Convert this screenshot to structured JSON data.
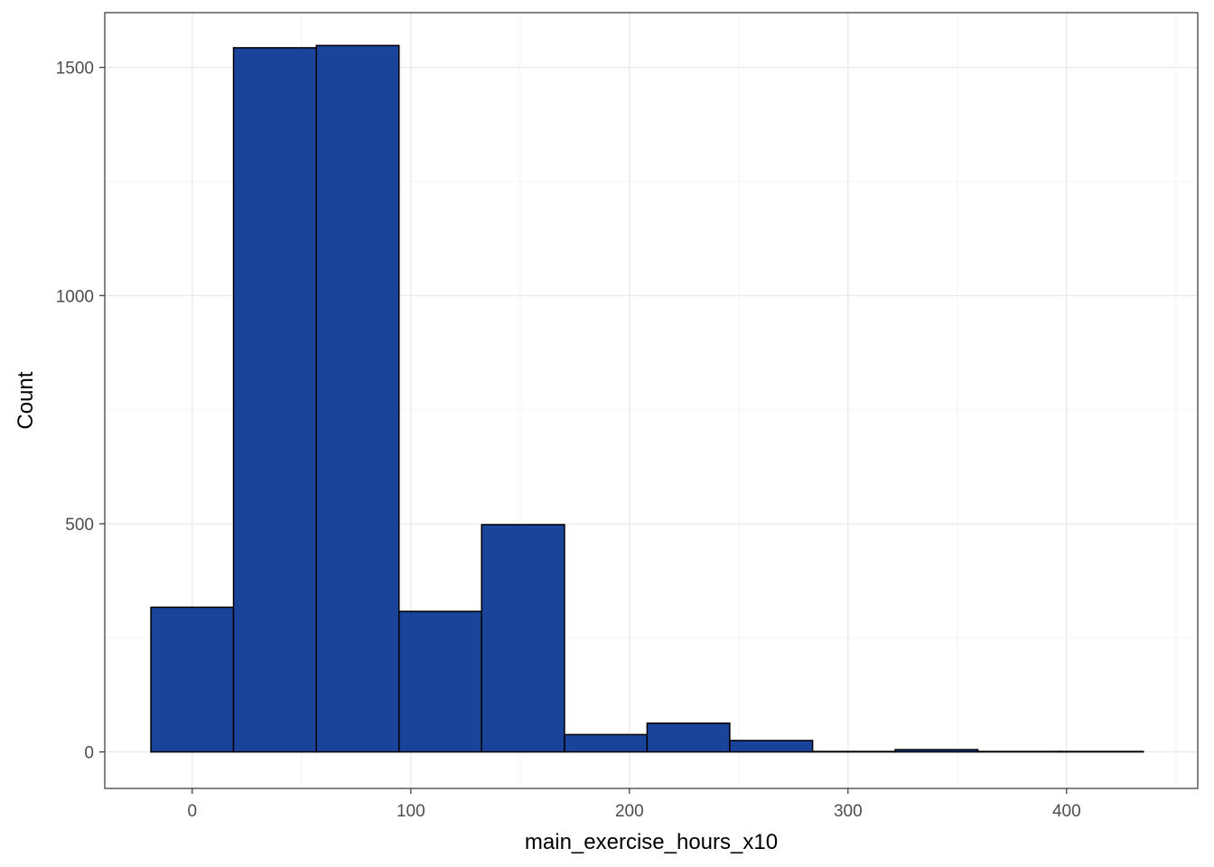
{
  "chart_data": {
    "type": "bar",
    "subtype": "histogram",
    "title": "",
    "xlabel": "main_exercise_hours_x10",
    "ylabel": "Count",
    "xlim": [
      -40,
      460
    ],
    "ylim": [
      -80,
      1620
    ],
    "x_ticks": [
      0,
      100,
      200,
      300,
      400
    ],
    "y_ticks": [
      0,
      500,
      1000,
      1500
    ],
    "grid": true,
    "bins": [
      {
        "x0": -18.9,
        "x1": 18.9,
        "count": 317
      },
      {
        "x0": 18.9,
        "x1": 56.8,
        "count": 1543
      },
      {
        "x0": 56.8,
        "x1": 94.6,
        "count": 1548
      },
      {
        "x0": 94.6,
        "x1": 132.4,
        "count": 308
      },
      {
        "x0": 132.4,
        "x1": 170.3,
        "count": 498
      },
      {
        "x0": 170.3,
        "x1": 208.1,
        "count": 38
      },
      {
        "x0": 208.1,
        "x1": 245.9,
        "count": 63
      },
      {
        "x0": 245.9,
        "x1": 283.8,
        "count": 25
      },
      {
        "x0": 283.8,
        "x1": 321.6,
        "count": 1
      },
      {
        "x0": 321.6,
        "x1": 359.4,
        "count": 5
      },
      {
        "x0": 359.4,
        "x1": 397.3,
        "count": 1
      },
      {
        "x0": 397.3,
        "x1": 435.1,
        "count": 1
      }
    ],
    "colors": {
      "fill": "#1A4499",
      "stroke": "#000000",
      "grid_major": "#EBEBEB",
      "grid_minor": "#F5F5F5",
      "panel_border": "#333333",
      "tick_text": "#4D4D4D"
    }
  }
}
